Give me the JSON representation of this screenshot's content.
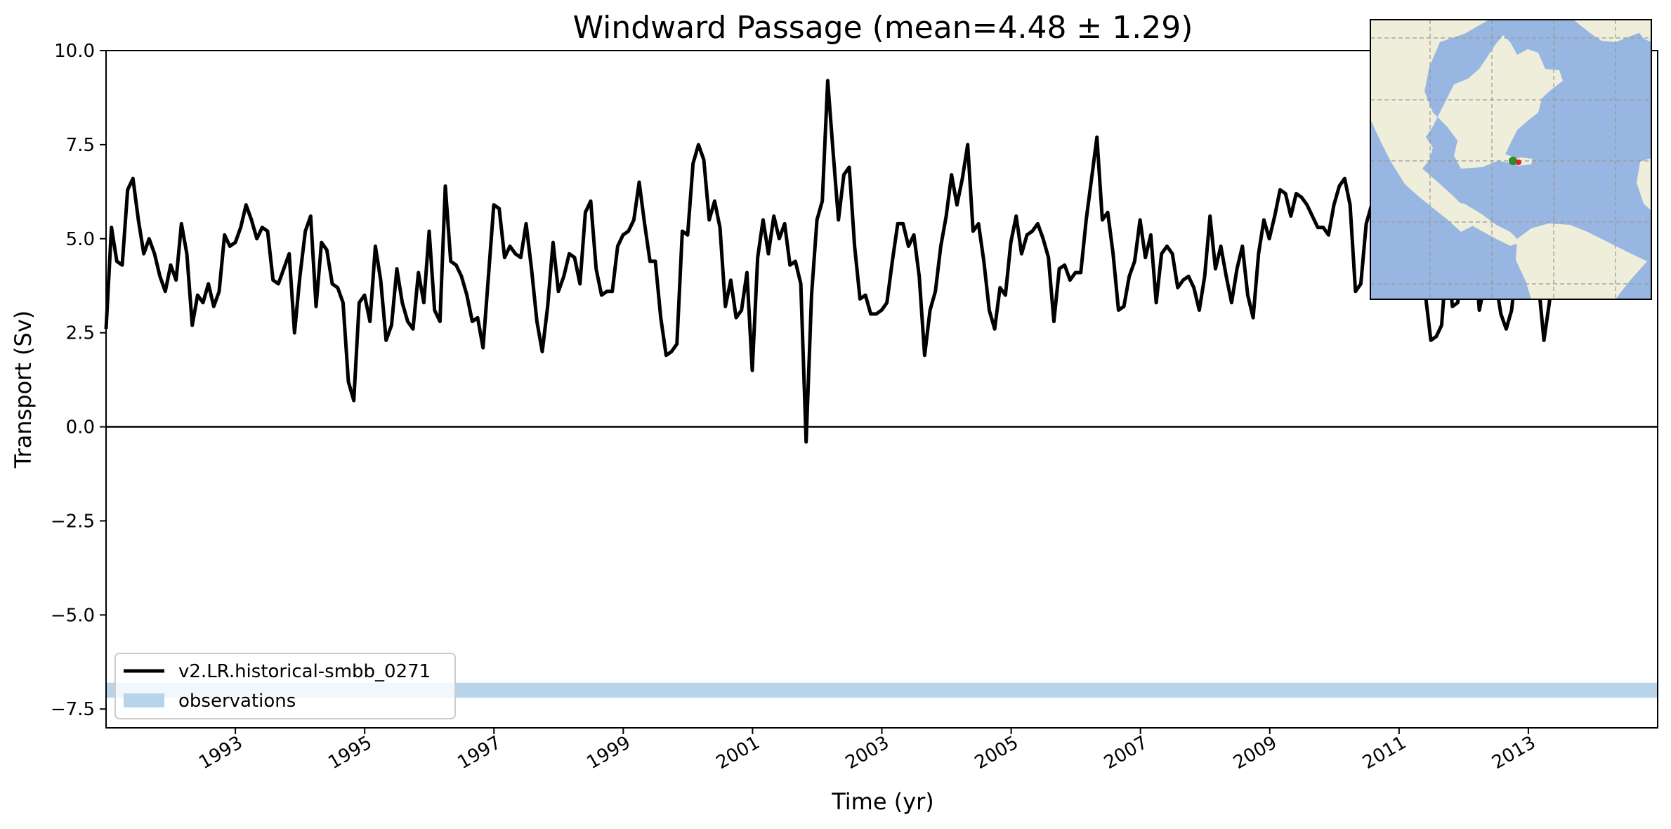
{
  "chart_data": {
    "type": "line",
    "title": "Windward Passage (mean=4.48 ± 1.29)",
    "xlabel": "Time (yr)",
    "ylabel": "Transport (Sv)",
    "xlim": [
      1991.0,
      2015.0
    ],
    "ylim": [
      -8.0,
      10.0
    ],
    "yticks": [
      -7.5,
      -5.0,
      -2.5,
      0.0,
      2.5,
      5.0,
      7.5,
      10.0
    ],
    "ytick_labels": [
      "−7.5",
      "−5.0",
      "−2.5",
      "0.0",
      "2.5",
      "5.0",
      "7.5",
      "10.0"
    ],
    "xticks": [
      1993,
      1995,
      1997,
      1999,
      2001,
      2003,
      2005,
      2007,
      2009,
      2011,
      2013
    ],
    "xtick_labels": [
      "1993",
      "1995",
      "1997",
      "1999",
      "2001",
      "2003",
      "2005",
      "2007",
      "2009",
      "2011",
      "2013"
    ],
    "zero_line": 0.0,
    "legend_position": "lower-left",
    "series": [
      {
        "name": "v2.LR.historical-smbb_0271",
        "color": "#000000",
        "x_start": 1991.0,
        "x_step": 0.0833,
        "values": [
          2.6,
          5.3,
          4.4,
          4.3,
          6.3,
          6.6,
          5.5,
          4.6,
          5.0,
          4.6,
          4.0,
          3.6,
          4.3,
          3.9,
          5.4,
          4.6,
          2.7,
          3.5,
          3.3,
          3.8,
          3.2,
          3.6,
          5.1,
          4.8,
          4.9,
          5.3,
          5.9,
          5.5,
          5.0,
          5.3,
          5.2,
          3.9,
          3.8,
          4.2,
          4.6,
          2.5,
          4.0,
          5.2,
          5.6,
          3.2,
          4.9,
          4.7,
          3.8,
          3.7,
          3.3,
          1.2,
          0.7,
          3.3,
          3.5,
          2.8,
          4.8,
          3.9,
          2.3,
          2.7,
          4.2,
          3.3,
          2.8,
          2.6,
          4.1,
          3.3,
          5.2,
          3.1,
          2.8,
          6.4,
          4.4,
          4.3,
          4.0,
          3.5,
          2.8,
          2.9,
          2.1,
          4.0,
          5.9,
          5.8,
          4.5,
          4.8,
          4.6,
          4.5,
          5.4,
          4.2,
          2.8,
          2.0,
          3.2,
          4.9,
          3.6,
          4.0,
          4.6,
          4.5,
          3.8,
          5.7,
          6.0,
          4.2,
          3.5,
          3.6,
          3.6,
          4.8,
          5.1,
          5.2,
          5.5,
          6.5,
          5.4,
          4.4,
          4.4,
          2.9,
          1.9,
          2.0,
          2.2,
          5.2,
          5.1,
          7.0,
          7.5,
          7.1,
          5.5,
          6.0,
          5.3,
          3.2,
          3.9,
          2.9,
          3.1,
          4.1,
          1.5,
          4.5,
          5.5,
          4.6,
          5.6,
          5.0,
          5.4,
          4.3,
          4.4,
          3.8,
          -0.4,
          3.5,
          5.5,
          6.0,
          9.2,
          7.3,
          5.5,
          6.7,
          6.9,
          4.8,
          3.4,
          3.5,
          3.0,
          3.0,
          3.1,
          3.3,
          4.4,
          5.4,
          5.4,
          4.8,
          5.1,
          4.0,
          1.9,
          3.1,
          3.6,
          4.8,
          5.6,
          6.7,
          5.9,
          6.6,
          7.5,
          5.2,
          5.4,
          4.4,
          3.1,
          2.6,
          3.7,
          3.5,
          4.9,
          5.6,
          4.6,
          5.1,
          5.2,
          5.4,
          5.0,
          4.5,
          2.8,
          4.2,
          4.3,
          3.9,
          4.1,
          4.1,
          5.5,
          6.6,
          7.7,
          5.5,
          5.7,
          4.6,
          3.1,
          3.2,
          4.0,
          4.4,
          5.5,
          4.5,
          5.1,
          3.3,
          4.6,
          4.8,
          4.6,
          3.7,
          3.9,
          4.0,
          3.7,
          3.1,
          4.0,
          5.6,
          4.2,
          4.8,
          4.0,
          3.3,
          4.2,
          4.8,
          3.5,
          2.9,
          4.6,
          5.5,
          5.0,
          5.6,
          6.3,
          6.2,
          5.6,
          6.2,
          6.1,
          5.9,
          5.6,
          5.3,
          5.3,
          5.1,
          5.9,
          6.4,
          6.6,
          5.9,
          3.6,
          3.8,
          5.4,
          5.9,
          6.2,
          6.6,
          5.9,
          4.9,
          4.5,
          3.9,
          4.8,
          4.5,
          5.0,
          3.5,
          2.3,
          2.4,
          2.7,
          4.6,
          3.2,
          3.3,
          4.5,
          3.9,
          5.0,
          3.1,
          3.8,
          3.6,
          3.9,
          3.0,
          2.6,
          3.1,
          4.5,
          5.3,
          5.0,
          4.0,
          3.8,
          2.3,
          3.3,
          4.4,
          4.9,
          5.0,
          4.3,
          4.1,
          4.6,
          4.9,
          5.2,
          4.5,
          5.4,
          5.3
        ]
      },
      {
        "name": "observations",
        "color": "#b8d4ea",
        "band": [
          -7.2,
          -6.8
        ]
      }
    ]
  },
  "inset_map": {
    "ocean_color": "#97b6e1",
    "land_color": "#efeedb",
    "gridlines": true,
    "markers": [
      "#2e8b2e",
      "#d62728"
    ]
  }
}
